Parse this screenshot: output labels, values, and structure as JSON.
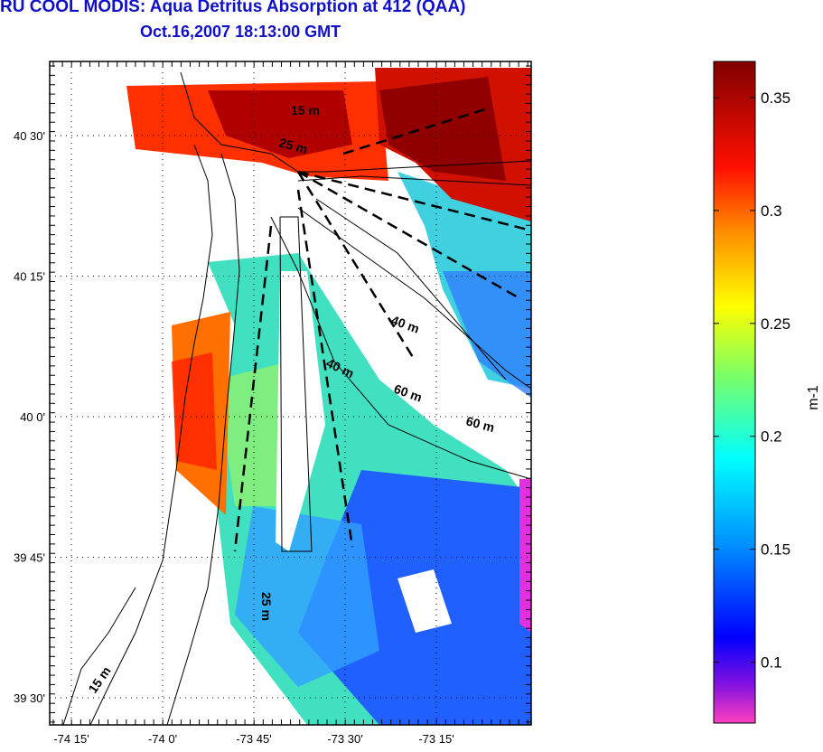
{
  "header": {
    "title": "RU COOL MODIS: Aqua Detritus Absorption at 412 (QAA)",
    "subtitle": "Oct.16,2007 18:13:00 GMT"
  },
  "map": {
    "lon_ticks": [
      "-74 15'",
      "-74 0'",
      "-73 45'",
      "-73 30'",
      "-73 15'"
    ],
    "lat_ticks": [
      "40 30'",
      "40 15'",
      "40 0'",
      "39 45'",
      "39 30'"
    ],
    "contour_labels": [
      "15 m",
      "25 m",
      "40 m",
      "40 m",
      "60 m",
      "60 m",
      "25 m",
      "15 m"
    ]
  },
  "colorbar": {
    "unit_label": "m-1",
    "range": [
      0.073,
      0.366
    ],
    "tick_labels": [
      "0.35",
      "0.3",
      "0.25",
      "0.2",
      "0.15",
      "0.1"
    ],
    "tick_values": [
      0.35,
      0.3,
      0.25,
      0.2,
      0.15,
      0.1
    ],
    "colors": [
      "#ff40c0",
      "#8010e0",
      "#0000ff",
      "#0090ff",
      "#00ffff",
      "#80ff60",
      "#ffff00",
      "#ff9000",
      "#ff1000",
      "#800000"
    ]
  }
}
